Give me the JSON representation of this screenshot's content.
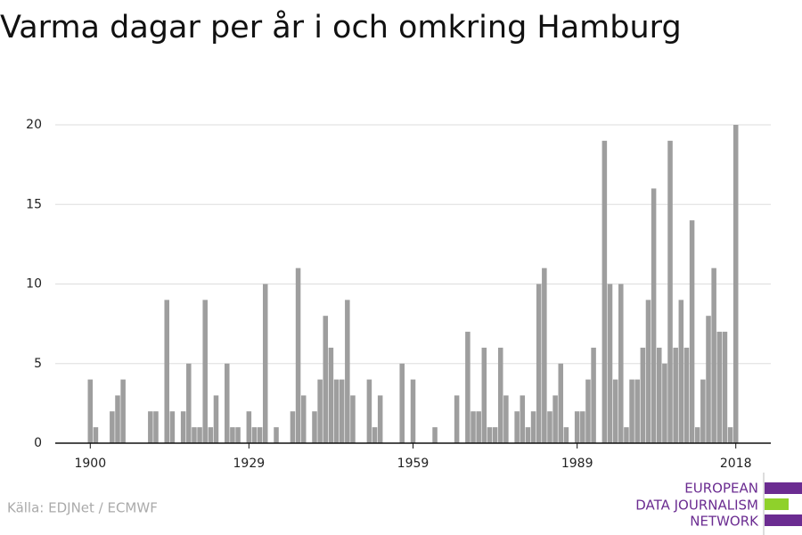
{
  "chart_data": {
    "type": "bar",
    "title": "Varma dagar per år i och omkring Hamburg",
    "x": [
      1900,
      1901,
      1902,
      1903,
      1904,
      1905,
      1906,
      1907,
      1908,
      1909,
      1910,
      1911,
      1912,
      1913,
      1914,
      1915,
      1916,
      1917,
      1918,
      1919,
      1920,
      1921,
      1922,
      1923,
      1924,
      1925,
      1926,
      1927,
      1928,
      1929,
      1930,
      1931,
      1932,
      1933,
      1934,
      1935,
      1936,
      1937,
      1938,
      1939,
      1940,
      1941,
      1942,
      1943,
      1944,
      1945,
      1946,
      1947,
      1948,
      1949,
      1950,
      1951,
      1952,
      1953,
      1954,
      1955,
      1956,
      1957,
      1958,
      1959,
      1960,
      1961,
      1962,
      1963,
      1964,
      1965,
      1966,
      1967,
      1968,
      1969,
      1970,
      1971,
      1972,
      1973,
      1974,
      1975,
      1976,
      1977,
      1978,
      1979,
      1980,
      1981,
      1982,
      1983,
      1984,
      1985,
      1986,
      1987,
      1988,
      1989,
      1990,
      1991,
      1992,
      1993,
      1994,
      1995,
      1996,
      1997,
      1998,
      1999,
      2000,
      2001,
      2002,
      2003,
      2004,
      2005,
      2006,
      2007,
      2008,
      2009,
      2010,
      2011,
      2012,
      2013,
      2014,
      2015,
      2016,
      2017,
      2018
    ],
    "values": [
      4,
      1,
      0,
      0,
      2,
      3,
      4,
      0,
      0,
      0,
      0,
      2,
      2,
      0,
      9,
      2,
      0,
      2,
      5,
      1,
      1,
      9,
      1,
      3,
      0,
      5,
      1,
      1,
      0,
      2,
      1,
      1,
      10,
      0,
      1,
      0,
      0,
      2,
      11,
      3,
      0,
      2,
      4,
      8,
      6,
      4,
      4,
      9,
      3,
      0,
      0,
      4,
      1,
      3,
      0,
      0,
      0,
      5,
      0,
      4,
      0,
      0,
      0,
      1,
      0,
      0,
      0,
      3,
      0,
      7,
      2,
      2,
      6,
      1,
      1,
      6,
      3,
      0,
      2,
      3,
      1,
      2,
      10,
      11,
      2,
      3,
      5,
      1,
      0,
      2,
      2,
      4,
      6,
      0,
      19,
      10,
      4,
      10,
      1,
      4,
      4,
      6,
      9,
      16,
      6,
      5,
      19,
      6,
      9,
      6,
      14,
      1,
      4,
      8,
      11,
      7,
      7,
      1,
      20
    ],
    "color": "#9e9e9e",
    "xlim": [
      1893.6,
      2024.4
    ],
    "xticks": [
      1900,
      1929,
      1959,
      1989,
      2018
    ],
    "ylim": [
      0,
      20
    ],
    "yticks": [
      0,
      5,
      10,
      15,
      20
    ],
    "grid": true,
    "source": "Källa: EDJNet / ECMWF",
    "logo": [
      "EUROPEAN",
      "DATA JOURNALISM",
      "NETWORK"
    ]
  }
}
